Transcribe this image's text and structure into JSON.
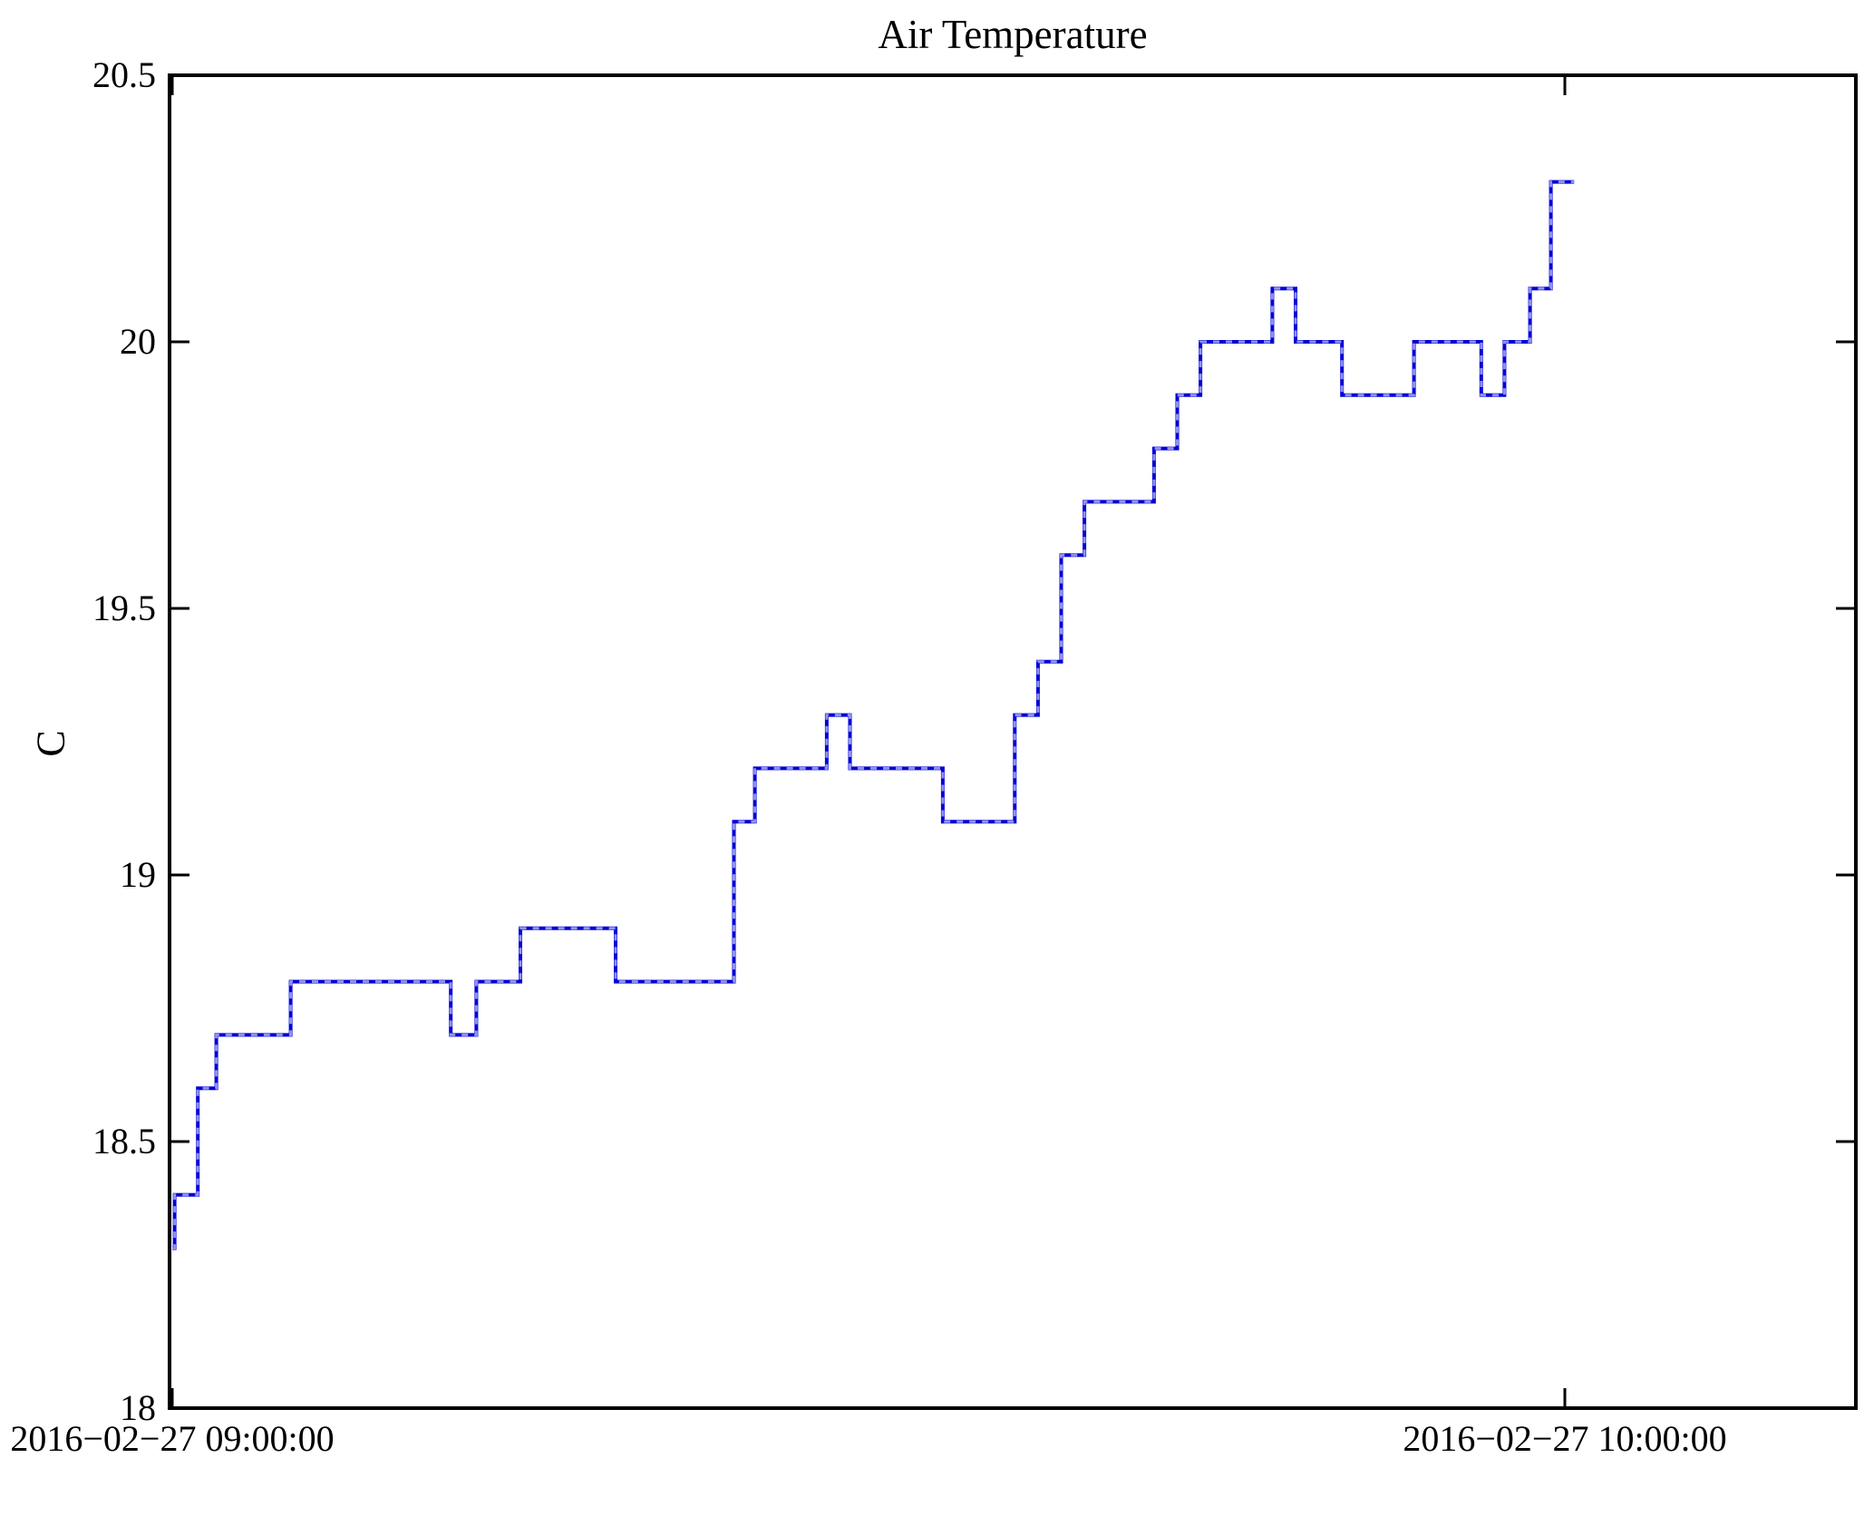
{
  "chart_data": {
    "type": "line",
    "subtype": "step-after",
    "title": "Air Temperature",
    "ylabel": "C",
    "xlabel": "",
    "grid": false,
    "legend": "none",
    "ylim": [
      18,
      20.5
    ],
    "yticks": [
      18,
      18.5,
      19,
      19.5,
      20,
      20.5
    ],
    "x_tick_labels": [
      "2016−02−27 09:00:00",
      "2016−02−27 10:00:00"
    ],
    "x_tick_minutes": [
      0,
      60
    ],
    "xlim_minutes": [
      -0.1,
      72.6
    ],
    "axis_color": "#000000",
    "line_color": "#0202d6",
    "marker_overlay_color": "#9191f0",
    "series": [
      {
        "name": "Air Temperature",
        "unit": "C",
        "step_points": [
          [
            0.0,
            18.3
          ],
          [
            0.1,
            18.4
          ],
          [
            1.1,
            18.6
          ],
          [
            1.9,
            18.7
          ],
          [
            5.1,
            18.8
          ],
          [
            12.0,
            18.7
          ],
          [
            13.1,
            18.8
          ],
          [
            15.0,
            18.9
          ],
          [
            19.1,
            18.8
          ],
          [
            24.2,
            19.1
          ],
          [
            25.1,
            19.2
          ],
          [
            28.2,
            19.3
          ],
          [
            29.2,
            19.2
          ],
          [
            33.2,
            19.1
          ],
          [
            36.3,
            19.3
          ],
          [
            37.3,
            19.4
          ],
          [
            38.3,
            19.6
          ],
          [
            39.3,
            19.7
          ],
          [
            42.3,
            19.8
          ],
          [
            43.3,
            19.9
          ],
          [
            44.3,
            20.0
          ],
          [
            47.4,
            20.1
          ],
          [
            48.4,
            20.0
          ],
          [
            50.4,
            19.9
          ],
          [
            53.5,
            20.0
          ],
          [
            56.4,
            19.9
          ],
          [
            57.4,
            20.0
          ],
          [
            58.5,
            20.1
          ],
          [
            59.4,
            20.3
          ]
        ],
        "end_minute": 60.4
      }
    ]
  }
}
